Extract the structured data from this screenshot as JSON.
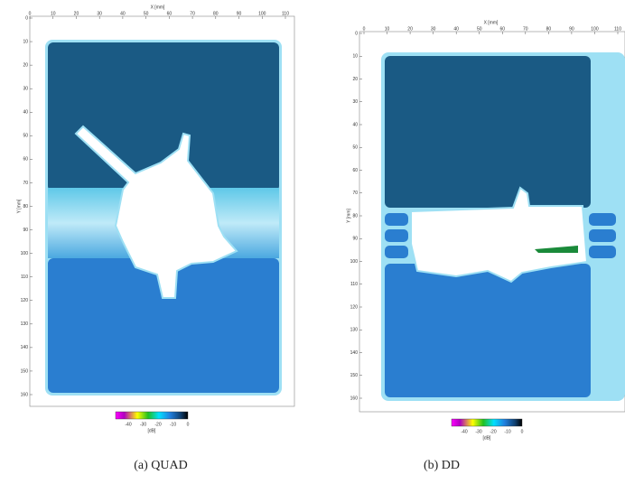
{
  "panels": [
    {
      "caption": "(a) QUAD",
      "x_axis_label": "X [mm]",
      "y_axis_label": "Y [mm]",
      "x_ticks": [
        "0",
        "10",
        "20",
        "30",
        "40",
        "50",
        "60",
        "70",
        "80",
        "90",
        "100",
        "110"
      ],
      "y_ticks": [
        "0",
        "10",
        "20",
        "30",
        "40",
        "50",
        "60",
        "70",
        "80",
        "90",
        "100",
        "110",
        "120",
        "130",
        "140",
        "150",
        "160"
      ],
      "colorbar_ticks": [
        "-40",
        "-30",
        "-20",
        "-10",
        "0"
      ],
      "colorbar_unit": "[dB]"
    },
    {
      "caption": "(b) DD",
      "x_axis_label": "X [mm]",
      "y_axis_label": "Y [mm]",
      "x_ticks": [
        "0",
        "10",
        "20",
        "30",
        "40",
        "50",
        "60",
        "70",
        "80",
        "90",
        "100",
        "110"
      ],
      "y_ticks": [
        "0",
        "10",
        "20",
        "30",
        "40",
        "50",
        "60",
        "70",
        "80",
        "90",
        "100",
        "110",
        "120",
        "130",
        "140",
        "150",
        "160"
      ],
      "colorbar_ticks": [
        "-40",
        "-30",
        "-20",
        "-10",
        "0"
      ],
      "colorbar_unit": "[dB]"
    }
  ]
}
